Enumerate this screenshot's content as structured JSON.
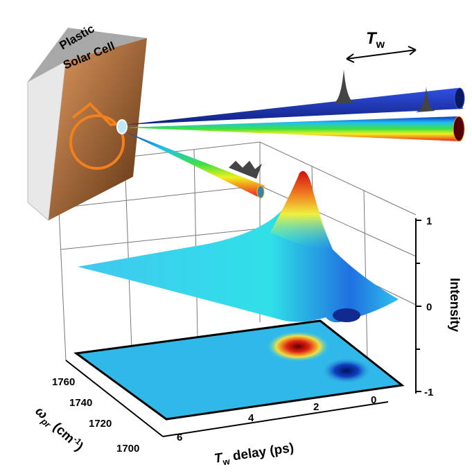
{
  "cell_label": [
    "Plastic",
    "Solar Cell"
  ],
  "delay_symbol": {
    "main": "T",
    "sub": "w"
  },
  "z_axis": {
    "label": "Intensity",
    "ticks": [
      "1",
      "0",
      "-1"
    ]
  },
  "y_axis": {
    "label": {
      "main": "ω",
      "sub": "pr",
      "unit": " (cm",
      "sup": "-1",
      "close": ")"
    },
    "ticks": [
      "1760",
      "1740",
      "1720",
      "1700"
    ]
  },
  "x_axis": {
    "label": {
      "main": "T",
      "sub": "w",
      "rest": " delay (ps)"
    },
    "ticks": [
      "6",
      "4",
      "2",
      "0"
    ]
  }
}
